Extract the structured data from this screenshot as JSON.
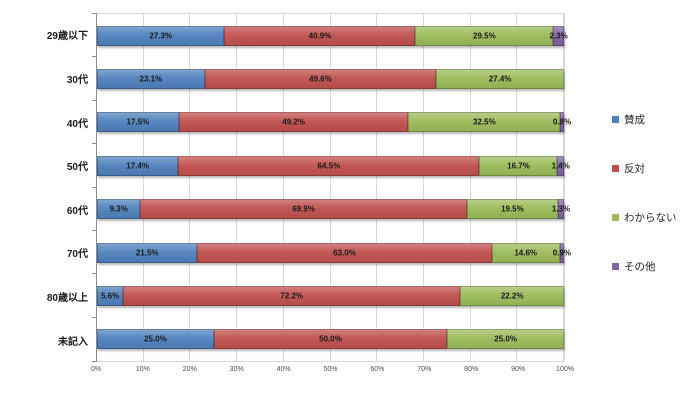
{
  "chart_data": {
    "type": "bar",
    "orientation": "horizontal",
    "stacked_percent": true,
    "title": "",
    "xlabel": "",
    "ylabel": "",
    "xlim": [
      0,
      100
    ],
    "grid": true,
    "legend_position": "right",
    "label_format": "one_decimal_percent",
    "categories": [
      "29歳以下",
      "30代",
      "40代",
      "50代",
      "60代",
      "70代",
      "80歳以上",
      "未記入"
    ],
    "x_ticks": [
      "0%",
      "10%",
      "20%",
      "30%",
      "40%",
      "50%",
      "60%",
      "70%",
      "80%",
      "90%",
      "100%"
    ],
    "series": [
      {
        "name": "賛成",
        "color": "#4F81BD",
        "values": [
          27.3,
          23.1,
          17.5,
          17.4,
          9.3,
          21.5,
          5.6,
          25.0
        ]
      },
      {
        "name": "反対",
        "color": "#C0504D",
        "values": [
          40.9,
          49.6,
          49.2,
          64.5,
          69.9,
          63.0,
          72.2,
          50.0
        ]
      },
      {
        "name": "わからない",
        "color": "#9BBB59",
        "values": [
          29.5,
          27.4,
          32.5,
          16.7,
          19.5,
          14.6,
          22.2,
          25.0
        ]
      },
      {
        "name": "その他",
        "color": "#8064A2",
        "values": [
          2.3,
          0,
          0.8,
          1.4,
          1.3,
          0.9,
          0,
          0
        ]
      }
    ]
  }
}
